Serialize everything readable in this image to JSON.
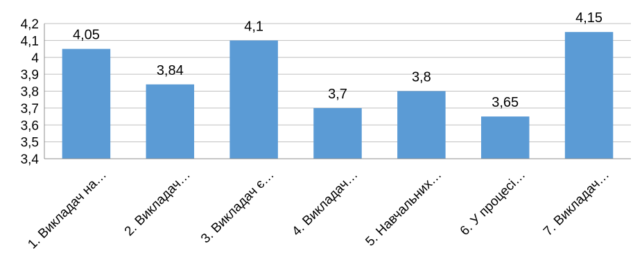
{
  "chart_data": {
    "type": "bar",
    "categories": [
      "1. Викладач на…",
      "2. Викладач…",
      "3. Викладач є…",
      "4. Викладач…",
      "5. Навчальних…",
      "6. У процесі…",
      "7. Викладач…"
    ],
    "values": [
      4.05,
      3.84,
      4.1,
      3.7,
      3.8,
      3.65,
      4.15
    ],
    "value_labels": [
      "4,05",
      "3,84",
      "4,1",
      "3,7",
      "3,8",
      "3,65",
      "4,15"
    ],
    "ylim": [
      3.4,
      4.2
    ],
    "y_ticks": [
      3.4,
      3.5,
      3.6,
      3.7,
      3.8,
      3.9,
      4.0,
      4.1,
      4.2
    ],
    "y_tick_labels": [
      "3,4",
      "3,5",
      "3,6",
      "3,7",
      "3,8",
      "3,9",
      "4",
      "4,1",
      "4,2"
    ],
    "grid": true,
    "legend": "none",
    "bar_color": "#5b9bd5",
    "title": "",
    "xlabel": "",
    "ylabel": ""
  }
}
